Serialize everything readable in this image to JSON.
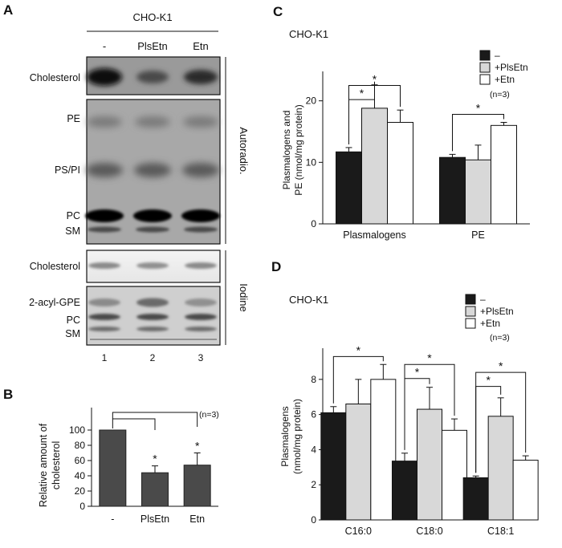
{
  "panel_a": {
    "letter": "A",
    "cell_line": "CHO-K1",
    "lane_headers": [
      "-",
      "PlsEtn",
      "Etn"
    ],
    "lane_numbers": [
      "1",
      "2",
      "3"
    ],
    "autoradio_label": "Autoradio.",
    "iodine_label": "Iodine",
    "autoradio_top_labels": [
      "Cholesterol"
    ],
    "autoradio_main_labels": [
      "PE",
      "PS/PI",
      "PC",
      "SM"
    ],
    "iodine_top_labels": [
      "Cholesterol"
    ],
    "iodine_main_labels": [
      "2-acyl-GPE",
      "PC",
      "SM"
    ]
  },
  "panel_b": {
    "letter": "B",
    "note": "(n=3)",
    "significance": "*"
  },
  "panel_c": {
    "letter": "C",
    "cell_line": "CHO-K1",
    "note": "(n=3)",
    "significance": "*"
  },
  "panel_d": {
    "letter": "D",
    "cell_line": "CHO-K1",
    "note": "(n=3)",
    "significance": "*"
  },
  "chart_data": [
    {
      "id": "B",
      "type": "bar",
      "categories": [
        "-",
        "PlsEtn",
        "Etn"
      ],
      "values": [
        100,
        44,
        54
      ],
      "errors": [
        0,
        9,
        16
      ],
      "ylabel": "Relative amount of cholesterol",
      "ylim": [
        0,
        100
      ],
      "yticks": [
        0,
        20,
        40,
        60,
        80,
        100
      ],
      "colors": [
        "#4a4a4a"
      ],
      "significance": [
        {
          "from": 0,
          "to": 1,
          "label": "*"
        },
        {
          "from": 0,
          "to": 2,
          "label": "*"
        }
      ]
    },
    {
      "id": "C",
      "type": "bar",
      "categories": [
        "Plasmalogens",
        "PE"
      ],
      "series": [
        {
          "name": "–",
          "values": [
            11.7,
            10.8
          ],
          "errors": [
            0.7,
            0.5
          ]
        },
        {
          "name": "+PlsEtn",
          "values": [
            18.8,
            10.4
          ],
          "errors": [
            3.8,
            2.4
          ]
        },
        {
          "name": "+Etn",
          "values": [
            16.5,
            16.0
          ],
          "errors": [
            2.0,
            0.5
          ]
        }
      ],
      "ylabel": "Plasmalogens and PE (nmol/mg protein)",
      "ylim": [
        0,
        24
      ],
      "yticks": [
        0,
        10,
        20
      ],
      "colors": [
        "#1a1a1a",
        "#d8d8d8",
        "#ffffff"
      ],
      "legend": "top-right",
      "significance": [
        {
          "group": 0,
          "from": 0,
          "to": 1,
          "level": 1,
          "label": "*"
        },
        {
          "group": 0,
          "from": 0,
          "to": 2,
          "level": 2,
          "label": "*"
        },
        {
          "group": 1,
          "from": 0,
          "to": 2,
          "level": 1,
          "label": "*"
        }
      ]
    },
    {
      "id": "D",
      "type": "bar",
      "categories": [
        "C16:0",
        "C18:0",
        "C18:1"
      ],
      "series": [
        {
          "name": "–",
          "values": [
            6.1,
            3.35,
            2.4
          ],
          "errors": [
            0.35,
            0.45,
            0.1
          ]
        },
        {
          "name": "+PlsEtn",
          "values": [
            6.6,
            6.3,
            5.9
          ],
          "errors": [
            1.4,
            1.25,
            1.05
          ]
        },
        {
          "name": "+Etn",
          "values": [
            8.0,
            5.1,
            3.4
          ],
          "errors": [
            0.85,
            0.65,
            0.25
          ]
        }
      ],
      "ylabel": "Plasmalogens (nmol/mg protein)",
      "ylim": [
        0,
        9.5
      ],
      "yticks": [
        0,
        2,
        4,
        6,
        8
      ],
      "colors": [
        "#1a1a1a",
        "#d8d8d8",
        "#ffffff"
      ],
      "legend": "top-right",
      "significance": [
        {
          "group": 0,
          "from": 0,
          "to": 2,
          "level": 1,
          "label": "*"
        },
        {
          "group": 1,
          "from": 0,
          "to": 1,
          "level": 1,
          "label": "*"
        },
        {
          "group": 1,
          "from": 0,
          "to": 2,
          "level": 2,
          "label": "*"
        },
        {
          "group": 2,
          "from": 0,
          "to": 1,
          "level": 1,
          "label": "*"
        },
        {
          "group": 2,
          "from": 0,
          "to": 2,
          "level": 2,
          "label": "*"
        }
      ]
    }
  ]
}
